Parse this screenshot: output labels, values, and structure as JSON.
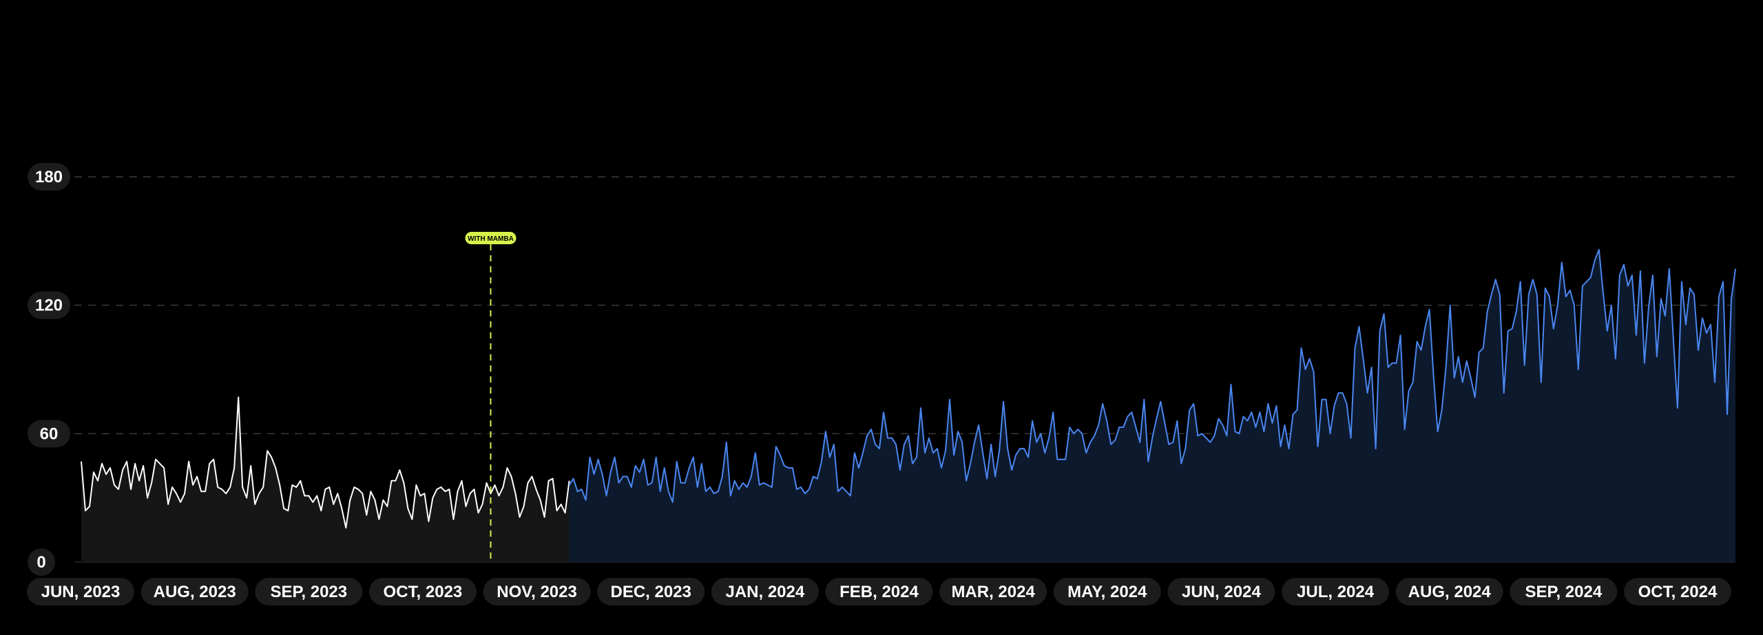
{
  "chart_data": {
    "type": "line",
    "title": "",
    "xlabel": "",
    "ylabel": "",
    "ylim": [
      0,
      180
    ],
    "y_ticks": [
      "0",
      "60",
      "120",
      "180"
    ],
    "x_tick_labels": [
      "JUN, 2023",
      "AUG, 2023",
      "SEP, 2023",
      "OCT, 2023",
      "NOV, 2023",
      "DEC, 2023",
      "JAN, 2024",
      "FEB, 2024",
      "MAR, 2024",
      "MAY, 2024",
      "JUN, 2024",
      "JUL, 2024",
      "AUG, 2024",
      "SEP, 2024",
      "OCT, 2024"
    ],
    "grid": "horizontal dashed",
    "annotation": {
      "label": "WITH MAMBA",
      "color": "#d8f24a",
      "at_point": 100
    },
    "colors": {
      "before": "#ffffff",
      "before_fill": "#161616",
      "after": "#4a86f0",
      "after_fill": "#0d1a2e",
      "grid": "#3a3a3a",
      "pill_bg": "#1c1c1c"
    },
    "series": [
      {
        "values": [
          47,
          24,
          26,
          42,
          38,
          46,
          41,
          44,
          36,
          34,
          43,
          47,
          34,
          46,
          38,
          45,
          30,
          37,
          48,
          46,
          44,
          27,
          35,
          32,
          28,
          32,
          47,
          36,
          40,
          33,
          33,
          46,
          48,
          35,
          34,
          32,
          35,
          44,
          77,
          35,
          30,
          45,
          27,
          32,
          35,
          52,
          49,
          44,
          36,
          25,
          24,
          36,
          35,
          38,
          31,
          31,
          28,
          31,
          24,
          34,
          35,
          27,
          32,
          25,
          16,
          29,
          35,
          34,
          32,
          22,
          33,
          29,
          20,
          29,
          26,
          38,
          38,
          43,
          37,
          25,
          20,
          36,
          31,
          32,
          19,
          30,
          34,
          35,
          33,
          34,
          20,
          33,
          38,
          26,
          32,
          34,
          23,
          27,
          37,
          32,
          36,
          31,
          35,
          44,
          40,
          32,
          21,
          26,
          37,
          40,
          34,
          29,
          21,
          38,
          39,
          24,
          27,
          23,
          38
        ]
      },
      {
        "values": [
          36,
          39,
          33,
          34,
          29,
          49,
          41,
          48,
          41,
          31,
          42,
          49,
          37,
          40,
          40,
          35,
          45,
          42,
          48,
          36,
          37,
          49,
          33,
          44,
          33,
          28,
          47,
          37,
          37,
          44,
          49,
          35,
          46,
          33,
          35,
          32,
          33,
          40,
          56,
          31,
          38,
          34,
          37,
          35,
          40,
          51,
          36,
          37,
          36,
          35,
          54,
          50,
          45,
          44,
          44,
          34,
          35,
          32,
          34,
          40,
          39,
          47,
          61,
          49,
          55,
          33,
          35,
          33,
          31,
          51,
          44,
          51,
          59,
          62,
          55,
          53,
          70,
          58,
          58,
          55,
          43,
          55,
          59,
          46,
          49,
          72,
          51,
          58,
          51,
          53,
          44,
          52,
          76,
          50,
          61,
          56,
          38,
          46,
          56,
          64,
          51,
          39,
          55,
          40,
          52,
          75,
          53,
          43,
          50,
          53,
          53,
          49,
          66,
          56,
          60,
          51,
          58,
          70,
          48,
          48,
          48,
          63,
          60,
          62,
          60,
          51,
          56,
          59,
          64,
          74,
          66,
          55,
          57,
          63,
          63,
          68,
          70,
          63,
          56,
          76,
          47,
          58,
          67,
          75,
          65,
          55,
          56,
          66,
          46,
          53,
          71,
          74,
          59,
          60,
          58,
          56,
          59,
          67,
          64,
          59,
          83,
          61,
          60,
          68,
          66,
          70,
          63,
          70,
          61,
          74,
          65,
          73,
          54,
          64,
          53,
          69,
          71,
          100,
          90,
          95,
          89,
          54,
          76,
          76,
          60,
          73,
          79,
          79,
          74,
          58,
          100,
          110,
          95,
          79,
          91,
          53,
          108,
          116,
          91,
          93,
          93,
          106,
          62,
          80,
          84,
          103,
          99,
          110,
          118,
          87,
          61,
          71,
          91,
          120,
          86,
          96,
          84,
          94,
          86,
          77,
          98,
          100,
          117,
          125,
          132,
          125,
          79,
          108,
          109,
          117,
          131,
          92,
          125,
          132,
          125,
          84,
          128,
          124,
          109,
          120,
          140,
          124,
          127,
          120,
          90,
          129,
          131,
          133,
          141,
          146,
          126,
          108,
          120,
          95,
          134,
          139,
          129,
          134,
          106,
          136,
          93,
          119,
          134,
          96,
          123,
          115,
          137,
          104,
          72,
          131,
          111,
          128,
          125,
          99,
          114,
          107,
          111,
          84,
          124,
          131,
          69,
          123,
          137
        ]
      }
    ]
  }
}
